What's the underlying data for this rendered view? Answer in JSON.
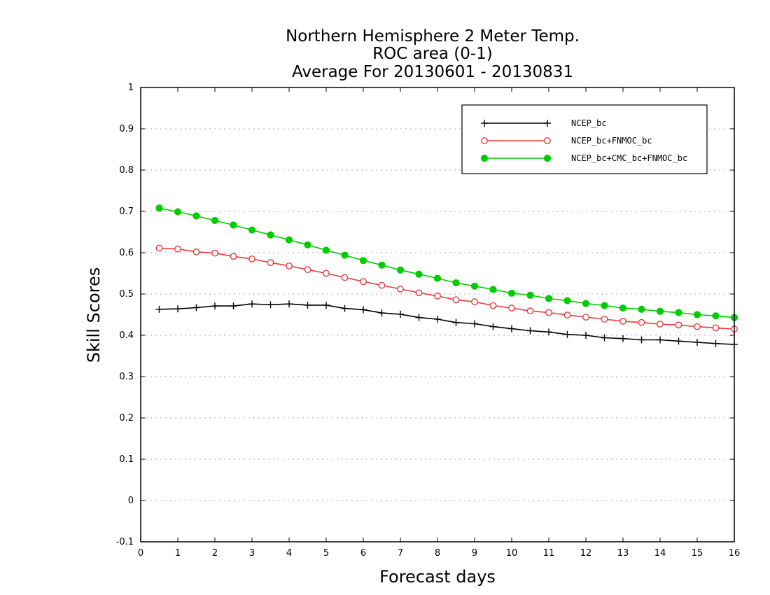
{
  "chart_data": {
    "type": "line",
    "title_lines": [
      "Northern Hemisphere 2 Meter Temp.",
      "ROC area (0-1)",
      "Average For 20130601 - 20130831"
    ],
    "xlabel": "Forecast days",
    "ylabel": "Skill Scores",
    "xlim": [
      0,
      16
    ],
    "ylim": [
      -0.1,
      1
    ],
    "x_ticks": [
      "0",
      "1",
      "2",
      "3",
      "4",
      "5",
      "6",
      "7",
      "8",
      "9",
      "10",
      "11",
      "12",
      "13",
      "14",
      "15",
      "16"
    ],
    "y_ticks": [
      "-0.1",
      "0",
      "0.1",
      "0.2",
      "0.3",
      "0.4",
      "0.5",
      "0.6",
      "0.7",
      "0.8",
      "0.9",
      "1"
    ],
    "grid": "horizontal dotted",
    "legend_position": "top-right",
    "x": [
      0.5,
      1,
      1.5,
      2,
      2.5,
      3,
      3.5,
      4,
      4.5,
      5,
      5.5,
      6,
      6.5,
      7,
      7.5,
      8,
      8.5,
      9,
      9.5,
      10,
      10.5,
      11,
      11.5,
      12,
      12.5,
      13,
      13.5,
      14,
      14.5,
      15,
      15.5,
      16
    ],
    "series": [
      {
        "name": "NCEP_bc",
        "color": "#000000",
        "marker": "plus",
        "values": [
          0.463,
          0.464,
          0.467,
          0.471,
          0.471,
          0.476,
          0.474,
          0.476,
          0.473,
          0.473,
          0.465,
          0.462,
          0.454,
          0.451,
          0.443,
          0.439,
          0.431,
          0.428,
          0.421,
          0.416,
          0.411,
          0.408,
          0.402,
          0.4,
          0.394,
          0.392,
          0.389,
          0.389,
          0.386,
          0.383,
          0.38,
          0.378
        ]
      },
      {
        "name": "NCEP_bc+FNMOC_bc",
        "color": "#e83c3c",
        "marker": "open-circle",
        "values": [
          0.611,
          0.609,
          0.602,
          0.599,
          0.591,
          0.585,
          0.576,
          0.568,
          0.559,
          0.55,
          0.54,
          0.53,
          0.521,
          0.512,
          0.503,
          0.495,
          0.486,
          0.481,
          0.472,
          0.466,
          0.459,
          0.455,
          0.449,
          0.444,
          0.439,
          0.434,
          0.431,
          0.427,
          0.425,
          0.421,
          0.418,
          0.415
        ]
      },
      {
        "name": "NCEP_bc+CMC_bc+FNMOC_bc",
        "color": "#00cc00",
        "marker": "filled-circle",
        "values": [
          0.708,
          0.699,
          0.689,
          0.678,
          0.667,
          0.655,
          0.643,
          0.631,
          0.619,
          0.606,
          0.594,
          0.581,
          0.57,
          0.558,
          0.548,
          0.538,
          0.527,
          0.519,
          0.511,
          0.502,
          0.497,
          0.489,
          0.484,
          0.477,
          0.472,
          0.466,
          0.463,
          0.458,
          0.455,
          0.45,
          0.447,
          0.443
        ]
      }
    ]
  }
}
